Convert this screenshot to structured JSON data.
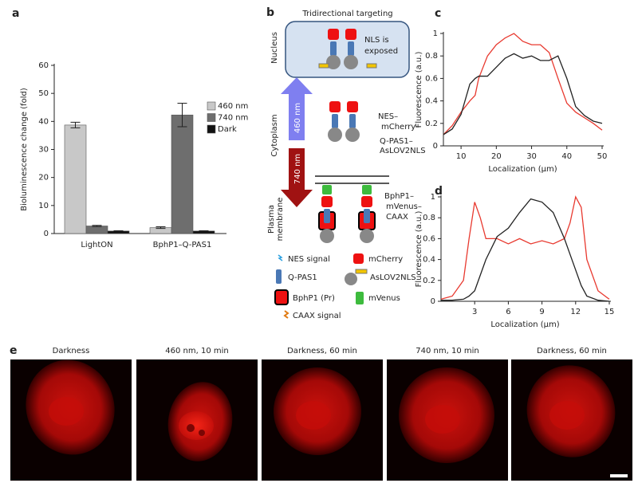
{
  "chart_data": [
    {
      "type": "bar",
      "panel_label": "a",
      "ylabel": "Bioluminescence change (fold)",
      "categories": [
        "LightON",
        "BphP1–Q-PAS1"
      ],
      "series": [
        {
          "name": "460 nm",
          "color": "#c8c8c8",
          "values": [
            38.7,
            2.1
          ],
          "errors": [
            1.0,
            0.3
          ]
        },
        {
          "name": "740 nm",
          "color": "#6e6e6e",
          "values": [
            2.7,
            42.3
          ],
          "errors": [
            0.2,
            4.2
          ]
        },
        {
          "name": "Dark",
          "color": "#111111",
          "values": [
            0.9,
            0.9
          ],
          "errors": [
            0.1,
            0.1
          ]
        }
      ],
      "ylim": [
        0,
        60
      ],
      "yticks": [
        0,
        10,
        20,
        30,
        40,
        50,
        60
      ]
    },
    {
      "type": "line",
      "panel_label": "c",
      "xlabel": "Localization (μm)",
      "ylabel": "Fluorescence (a.u.)",
      "x": [
        5,
        7.5,
        10,
        12.5,
        14,
        15,
        17.5,
        20,
        22.5,
        25,
        27.5,
        30,
        32.5,
        35,
        37.5,
        40,
        42.5,
        45,
        47.5,
        50
      ],
      "series": [
        {
          "color": "#e8392f",
          "values": [
            0.1,
            0.18,
            0.3,
            0.4,
            0.45,
            0.6,
            0.8,
            0.9,
            0.96,
            1.0,
            0.93,
            0.9,
            0.9,
            0.83,
            0.6,
            0.38,
            0.3,
            0.25,
            0.2,
            0.14
          ]
        },
        {
          "color": "#222222",
          "values": [
            0.1,
            0.15,
            0.28,
            0.55,
            0.6,
            0.62,
            0.62,
            0.7,
            0.78,
            0.82,
            0.78,
            0.8,
            0.76,
            0.76,
            0.8,
            0.6,
            0.35,
            0.27,
            0.22,
            0.2
          ]
        }
      ],
      "xlim": [
        5,
        50
      ],
      "xticks": [
        10,
        20,
        30,
        40,
        50
      ],
      "ylim": [
        0,
        1
      ],
      "yticks": [
        0,
        0.2,
        0.4,
        0.6,
        0.8,
        1
      ]
    },
    {
      "type": "line",
      "panel_label": "d",
      "xlabel": "Localization (μm)",
      "ylabel": "Fluorescence (a.u.)",
      "x": [
        0,
        1,
        2,
        2.5,
        3,
        3.5,
        4,
        5,
        6,
        7,
        8,
        9,
        10,
        11,
        11.5,
        12,
        12.5,
        13,
        14,
        15
      ],
      "series": [
        {
          "color": "#e8392f",
          "values": [
            0.02,
            0.05,
            0.2,
            0.6,
            0.95,
            0.8,
            0.6,
            0.6,
            0.55,
            0.6,
            0.55,
            0.58,
            0.55,
            0.6,
            0.75,
            1.0,
            0.9,
            0.4,
            0.1,
            0.02
          ]
        },
        {
          "color": "#222222",
          "values": [
            0.01,
            0.01,
            0.02,
            0.05,
            0.1,
            0.25,
            0.4,
            0.62,
            0.7,
            0.85,
            0.98,
            0.95,
            0.85,
            0.6,
            0.45,
            0.3,
            0.15,
            0.05,
            0.01,
            0.0
          ]
        }
      ],
      "xlim": [
        0,
        15
      ],
      "xticks": [
        3,
        6,
        9,
        12,
        15
      ],
      "ylim": [
        0,
        1
      ],
      "yticks": [
        0,
        0.2,
        0.4,
        0.6,
        0.8,
        1
      ]
    }
  ],
  "diagram": {
    "panel_label": "b",
    "title": "Tridirectional targeting",
    "compartments": [
      [
        "Nucleus"
      ],
      [
        "Cytoplasm"
      ],
      [
        "Plasma",
        "membrane"
      ]
    ],
    "nucleus_note": [
      "NLS is",
      "exposed"
    ],
    "arrows": [
      "460 nm",
      "740 nm"
    ],
    "constructs": [
      [
        "NES–",
        "mCherry–",
        "Q-PAS1–",
        "AsLOV2NLS"
      ],
      [
        "BphP1–",
        "mVenus–",
        "CAAX"
      ]
    ],
    "legend": [
      "NES signal",
      "mCherry",
      "Q-PAS1",
      "AsLOV2NLS",
      "BphP1 (Pr)",
      "mVenus",
      "CAAX signal"
    ]
  },
  "panel_e": {
    "panel_label": "e",
    "images": [
      "Darkness",
      "460 nm, 10 min",
      "Darkness, 60 min",
      "740 nm, 10 min",
      "Darkness, 60 min"
    ]
  }
}
